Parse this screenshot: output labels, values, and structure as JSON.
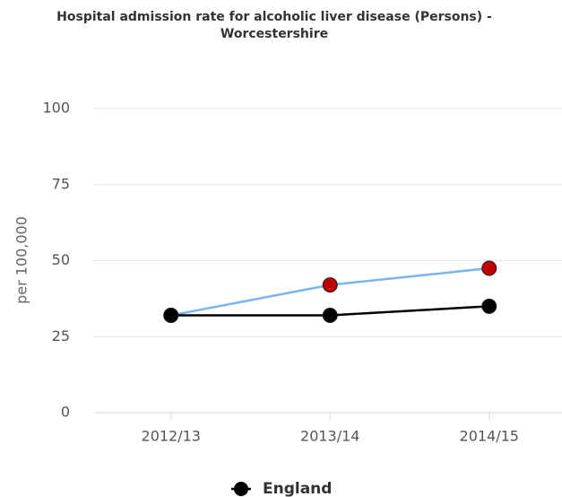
{
  "chart_data": {
    "type": "line",
    "title": "Hospital admission rate for alcoholic liver disease (Persons) -",
    "subtitle": "Worcestershire",
    "y_label": "per 100,000",
    "categories": [
      "2012/13",
      "2013/14",
      "2014/15"
    ],
    "series": [
      {
        "color": "#7cb5ec",
        "marker_colors": [
          "#ffc000",
          "#c00000",
          "#c00000"
        ],
        "values": [
          32,
          42,
          47.5
        ]
      },
      {
        "name": "England",
        "color": "#000000",
        "values": [
          32,
          32,
          35
        ]
      }
    ],
    "ylim": [
      0,
      100
    ],
    "yticks": [
      0,
      25,
      50,
      75,
      100
    ],
    "grid": true
  }
}
